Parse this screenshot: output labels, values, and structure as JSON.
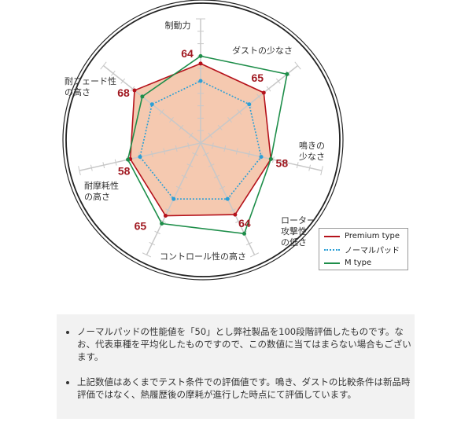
{
  "chart_data": {
    "type": "radar",
    "axes": [
      "制動力",
      "ダストの少なさ",
      "鳴きの\n少なさ",
      "ローター\n攻撃性\nの低さ",
      "コントロール性の高さ",
      "耐摩耗性\nの高さ",
      "耐フェード性\nの高さ"
    ],
    "range": [
      0,
      100
    ],
    "series": [
      {
        "name": "Premium type",
        "values": [
          64,
          65,
          58,
          64,
          65,
          58,
          68
        ],
        "color": "#b5121b",
        "fill": "#f5c9b0",
        "labels_shown": true
      },
      {
        "name": "ノーマルパッド",
        "values": [
          50,
          50,
          50,
          50,
          50,
          50,
          50
        ],
        "color": "#2a9fd6",
        "dashed": true
      },
      {
        "name": "M type",
        "values": [
          70,
          89,
          58,
          81,
          72,
          60,
          60
        ],
        "color": "#1e8e4a"
      }
    ]
  },
  "notes": [
    "ノーマルパッドの性能値を「50」とし弊社製品を100段階評価したものです。なお、代表車種を平均化したものですので、この数値に当てはまらない場合もございます。",
    "上記数値はあくまでテスト条件での評価値です。鳴き、ダストの比較条件は新品時評価ではなく、熱履歴後の摩耗が進行した時点にて評価しています。"
  ]
}
